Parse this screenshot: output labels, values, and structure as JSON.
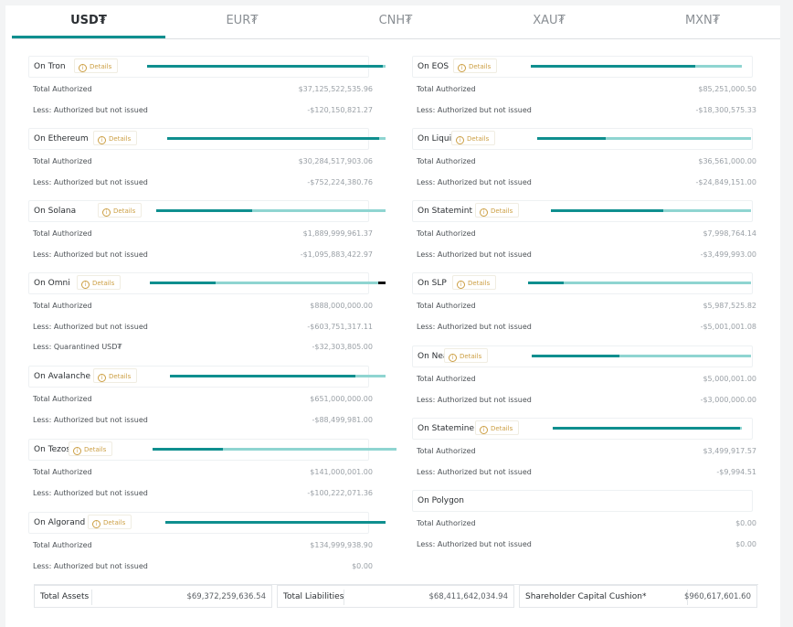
{
  "tabs": [
    "USD₮",
    "EUR₮",
    "CNH₮",
    "XAU₮",
    "MXN₮"
  ],
  "details_label": "Details",
  "labels": {
    "total": "Total Authorized",
    "less": "Less: Authorized but not issued",
    "quarantined": "Less: Quarantined USD₮"
  },
  "left": [
    {
      "name": "On Tron",
      "total": "$37,125,522,535.96",
      "less": "-$120,150,821.27",
      "issued_fraction": 0.99
    },
    {
      "name": "On Ethereum",
      "total": "$30,284,517,903.06",
      "less": "-$752,224,380.76",
      "issued_fraction": 0.97
    },
    {
      "name": "On Solana",
      "total": "$1,889,999,961.37",
      "less": "-$1,095,883,422.97",
      "issued_fraction": 0.42
    },
    {
      "name": "On Omni",
      "total": "$888,000,000.00",
      "less": "-$603,751,317.11",
      "quarantined": "-$32,303,805.00",
      "issued_fraction": 0.28,
      "quarantined_fraction": 0.04
    },
    {
      "name": "On Avalanche",
      "total": "$651,000,000.00",
      "less": "-$88,499,981.00",
      "issued_fraction": 0.86
    },
    {
      "name": "On Tezos",
      "total": "$141,000,001.00",
      "less": "-$100,222,071.36",
      "issued_fraction": 0.29
    },
    {
      "name": "On Algorand",
      "total": "$134,999,938.90",
      "less": "$0.00",
      "issued_fraction": 1.0
    }
  ],
  "right": [
    {
      "name": "On EOS",
      "total": "$85,251,000.50",
      "less": "-$18,300,575.33",
      "issued_fraction": 0.78
    },
    {
      "name": "On Liquid",
      "total": "$36,561,000.00",
      "less": "-$24,849,151.00",
      "issued_fraction": 0.32
    },
    {
      "name": "On Statemint",
      "total": "$7,998,764.14",
      "less": "-$3,499,993.00",
      "issued_fraction": 0.56
    },
    {
      "name": "On SLP",
      "total": "$5,987,525.82",
      "less": "-$5,001,001.08",
      "issued_fraction": 0.16
    },
    {
      "name": "On Near",
      "total": "$5,000,001.00",
      "less": "-$3,000,000.00",
      "issued_fraction": 0.4
    },
    {
      "name": "On Statemine",
      "total": "$3,499,917.57",
      "less": "-$9,994.51",
      "issued_fraction": 0.99
    },
    {
      "name": "On Polygon",
      "total": "$0.00",
      "less": "$0.00"
    }
  ],
  "summary": {
    "assets_label": "Total Assets",
    "assets_value": "$69,372,259,636.54",
    "liabilities_label": "Total Liabilities",
    "liabilities_value": "$68,411,642,034.94",
    "cushion_label": "Shareholder Capital Cushion*",
    "cushion_value": "$960,617,601.60"
  },
  "colors": {
    "accent": "#0f8f8f",
    "bar_light": "#8fd5d1",
    "details": "#cc9f43"
  }
}
